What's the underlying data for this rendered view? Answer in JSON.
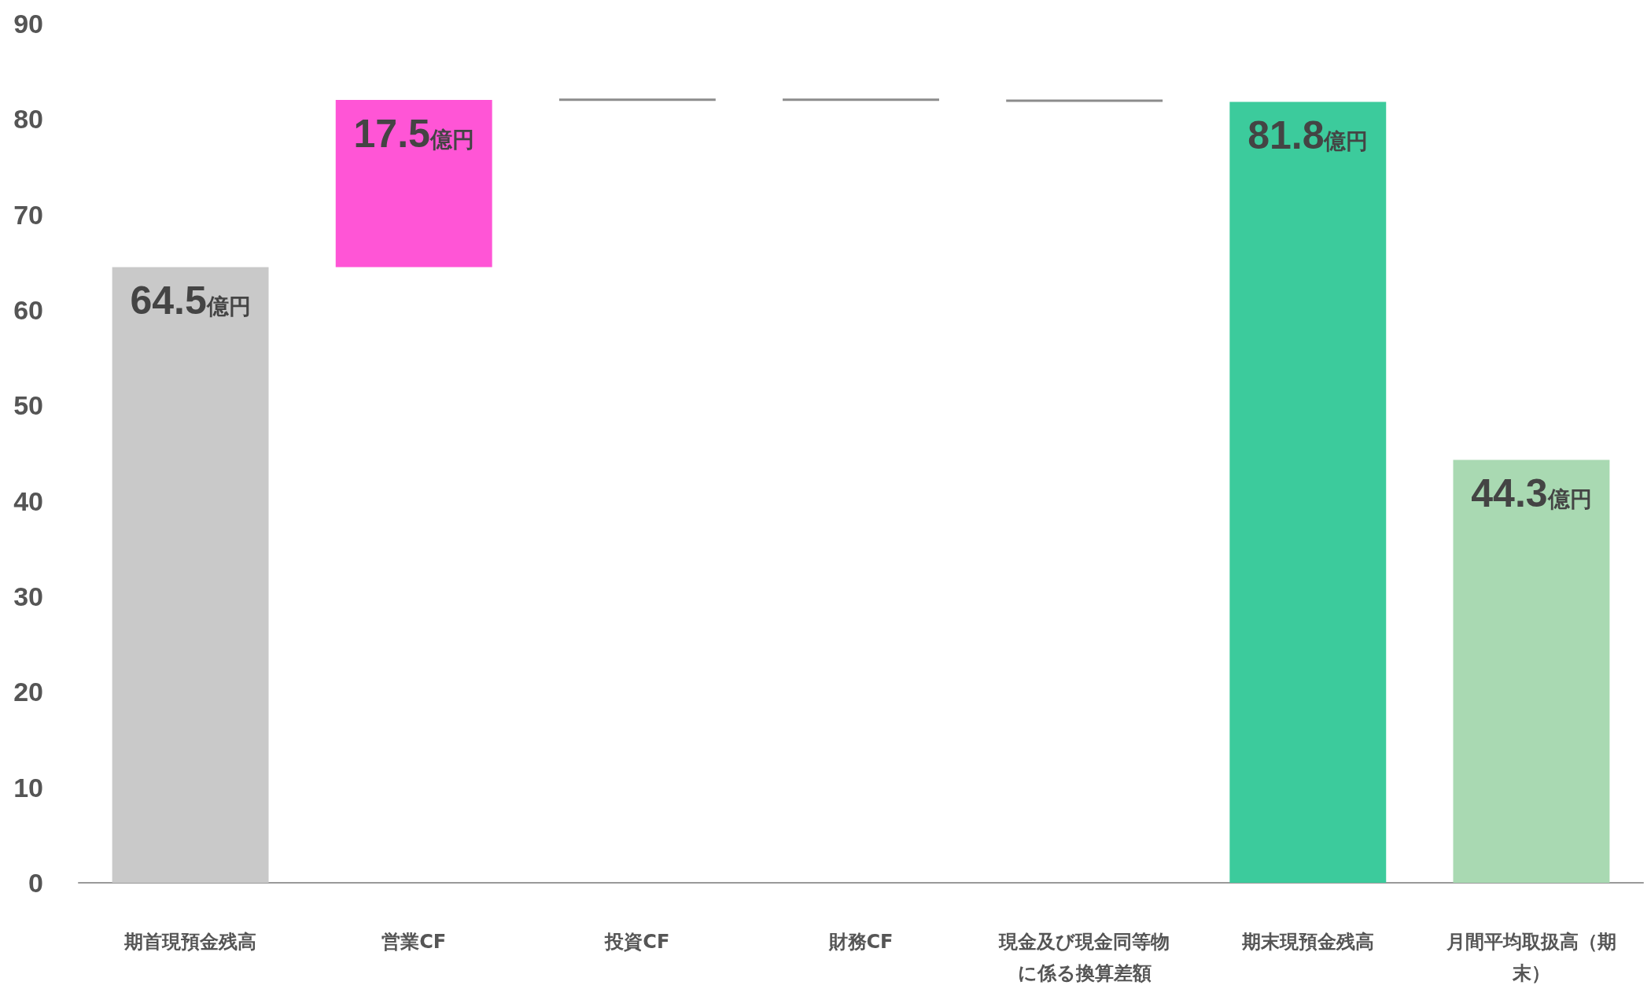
{
  "chart_data": {
    "type": "bar",
    "categories": [
      "期首現預金残高",
      "営業CF",
      "投資CF",
      "財務CF",
      "現金及び現金同等物に係る換算差額",
      "期末現預金残高",
      "月間平均取扱高（期末）"
    ],
    "values": [
      64.5,
      17.5,
      -0.1,
      0,
      -0.1,
      81.8,
      44.3
    ],
    "base": [
      0,
      64.5,
      82.0,
      81.9,
      81.9,
      0,
      0
    ],
    "colors": [
      "#c9c9c9",
      "#ff55d6",
      "#8c8c8c",
      "#8c8c8c",
      "#8c8c8c",
      "#3ccb9c",
      "#a9d9b2"
    ],
    "value_labels": [
      "64.5億円",
      "17.5億円",
      null,
      null,
      null,
      "81.8億円",
      "44.3億円"
    ],
    "ylim": [
      0,
      90
    ],
    "yticks": [
      0,
      10,
      20,
      30,
      40,
      50,
      60,
      70,
      80,
      90
    ],
    "grid": false
  }
}
